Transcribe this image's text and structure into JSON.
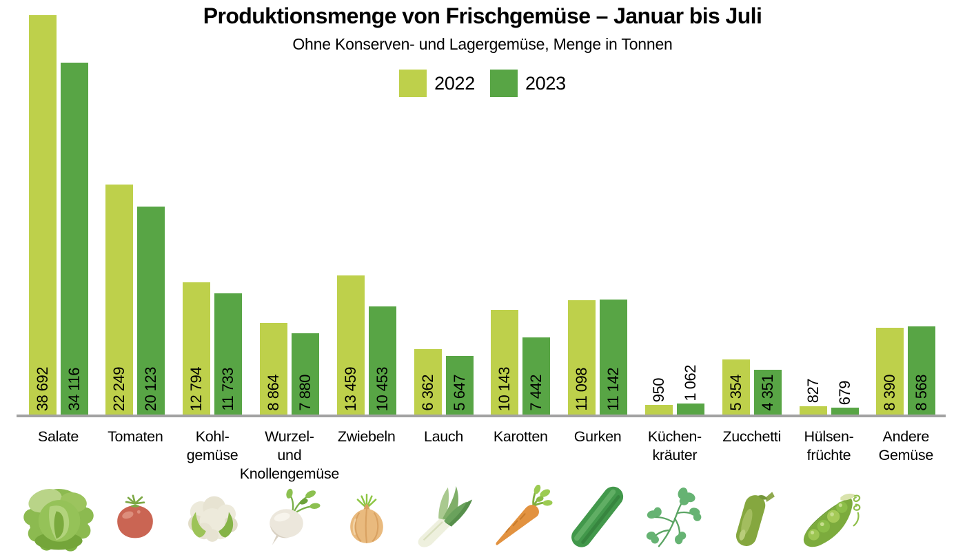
{
  "title": "Produktionsmenge von Frischgemüse – Januar bis Juli",
  "subtitle": "Ohne Konserven- und Lagergemüse, Menge in Tonnen",
  "legend": [
    {
      "label": "2022",
      "color": "#bed04b"
    },
    {
      "label": "2023",
      "color": "#58a545"
    }
  ],
  "colors": {
    "bar_2022": "#bed04b",
    "bar_2023": "#58a545",
    "axis_line": "#a2a2a2",
    "text": "#000000"
  },
  "chart_data": {
    "type": "bar",
    "orientation": "vertical",
    "grouped": true,
    "title": "Produktionsmenge von Frischgemüse – Januar bis Juli",
    "subtitle": "Ohne Konserven- und Lagergemüse, Menge in Tonnen",
    "unit": "Tonnen",
    "legend_position": "top-center",
    "grid": false,
    "y_axis_visible": false,
    "value_labels_rotated": true,
    "ylim": [
      0,
      38692
    ],
    "categories": [
      {
        "id": "salate",
        "lines": [
          "Salate"
        ],
        "icon": "lettuce"
      },
      {
        "id": "tomaten",
        "lines": [
          "Tomaten"
        ],
        "icon": "tomato"
      },
      {
        "id": "kohlgemuese",
        "lines": [
          "Kohl-",
          "gemüse"
        ],
        "icon": "cauliflower"
      },
      {
        "id": "wurzel-und-knollengemuese",
        "lines": [
          "Wurzel-",
          "und",
          "Knollengemüse"
        ],
        "icon": "turnip"
      },
      {
        "id": "zwiebeln",
        "lines": [
          "Zwiebeln"
        ],
        "icon": "onion"
      },
      {
        "id": "lauch",
        "lines": [
          "Lauch"
        ],
        "icon": "leek"
      },
      {
        "id": "karotten",
        "lines": [
          "Karotten"
        ],
        "icon": "carrot"
      },
      {
        "id": "gurken",
        "lines": [
          "Gurken"
        ],
        "icon": "cucumber"
      },
      {
        "id": "kuechenkraeuter",
        "lines": [
          "Küchen-",
          "kräuter"
        ],
        "icon": "herbs"
      },
      {
        "id": "zucchetti",
        "lines": [
          "Zucchetti"
        ],
        "icon": "zucchini"
      },
      {
        "id": "huelsenfruechte",
        "lines": [
          "Hülsen-",
          "früchte"
        ],
        "icon": "peapod"
      },
      {
        "id": "andere-gemuese",
        "lines": [
          "Andere",
          "Gemüse"
        ],
        "icon": null
      }
    ],
    "series": [
      {
        "name": "2022",
        "color": "#bed04b",
        "values": [
          38692,
          22249,
          12794,
          8864,
          13459,
          6362,
          10143,
          11098,
          950,
          5354,
          827,
          8390
        ],
        "labels": [
          "38 692",
          "22 249",
          "12 794",
          "8 864",
          "13 459",
          "6 362",
          "10 143",
          "11 098",
          "950",
          "5 354",
          "827",
          "8 390"
        ]
      },
      {
        "name": "2023",
        "color": "#58a545",
        "values": [
          34116,
          20123,
          11733,
          7880,
          10453,
          5647,
          7442,
          11142,
          1062,
          4351,
          679,
          8568
        ],
        "labels": [
          "34 116",
          "20 123",
          "11 733",
          "7 880",
          "10 453",
          "5 647",
          "7 442",
          "11 142",
          "1 062",
          "4 351",
          "679",
          "8 568"
        ]
      }
    ]
  }
}
